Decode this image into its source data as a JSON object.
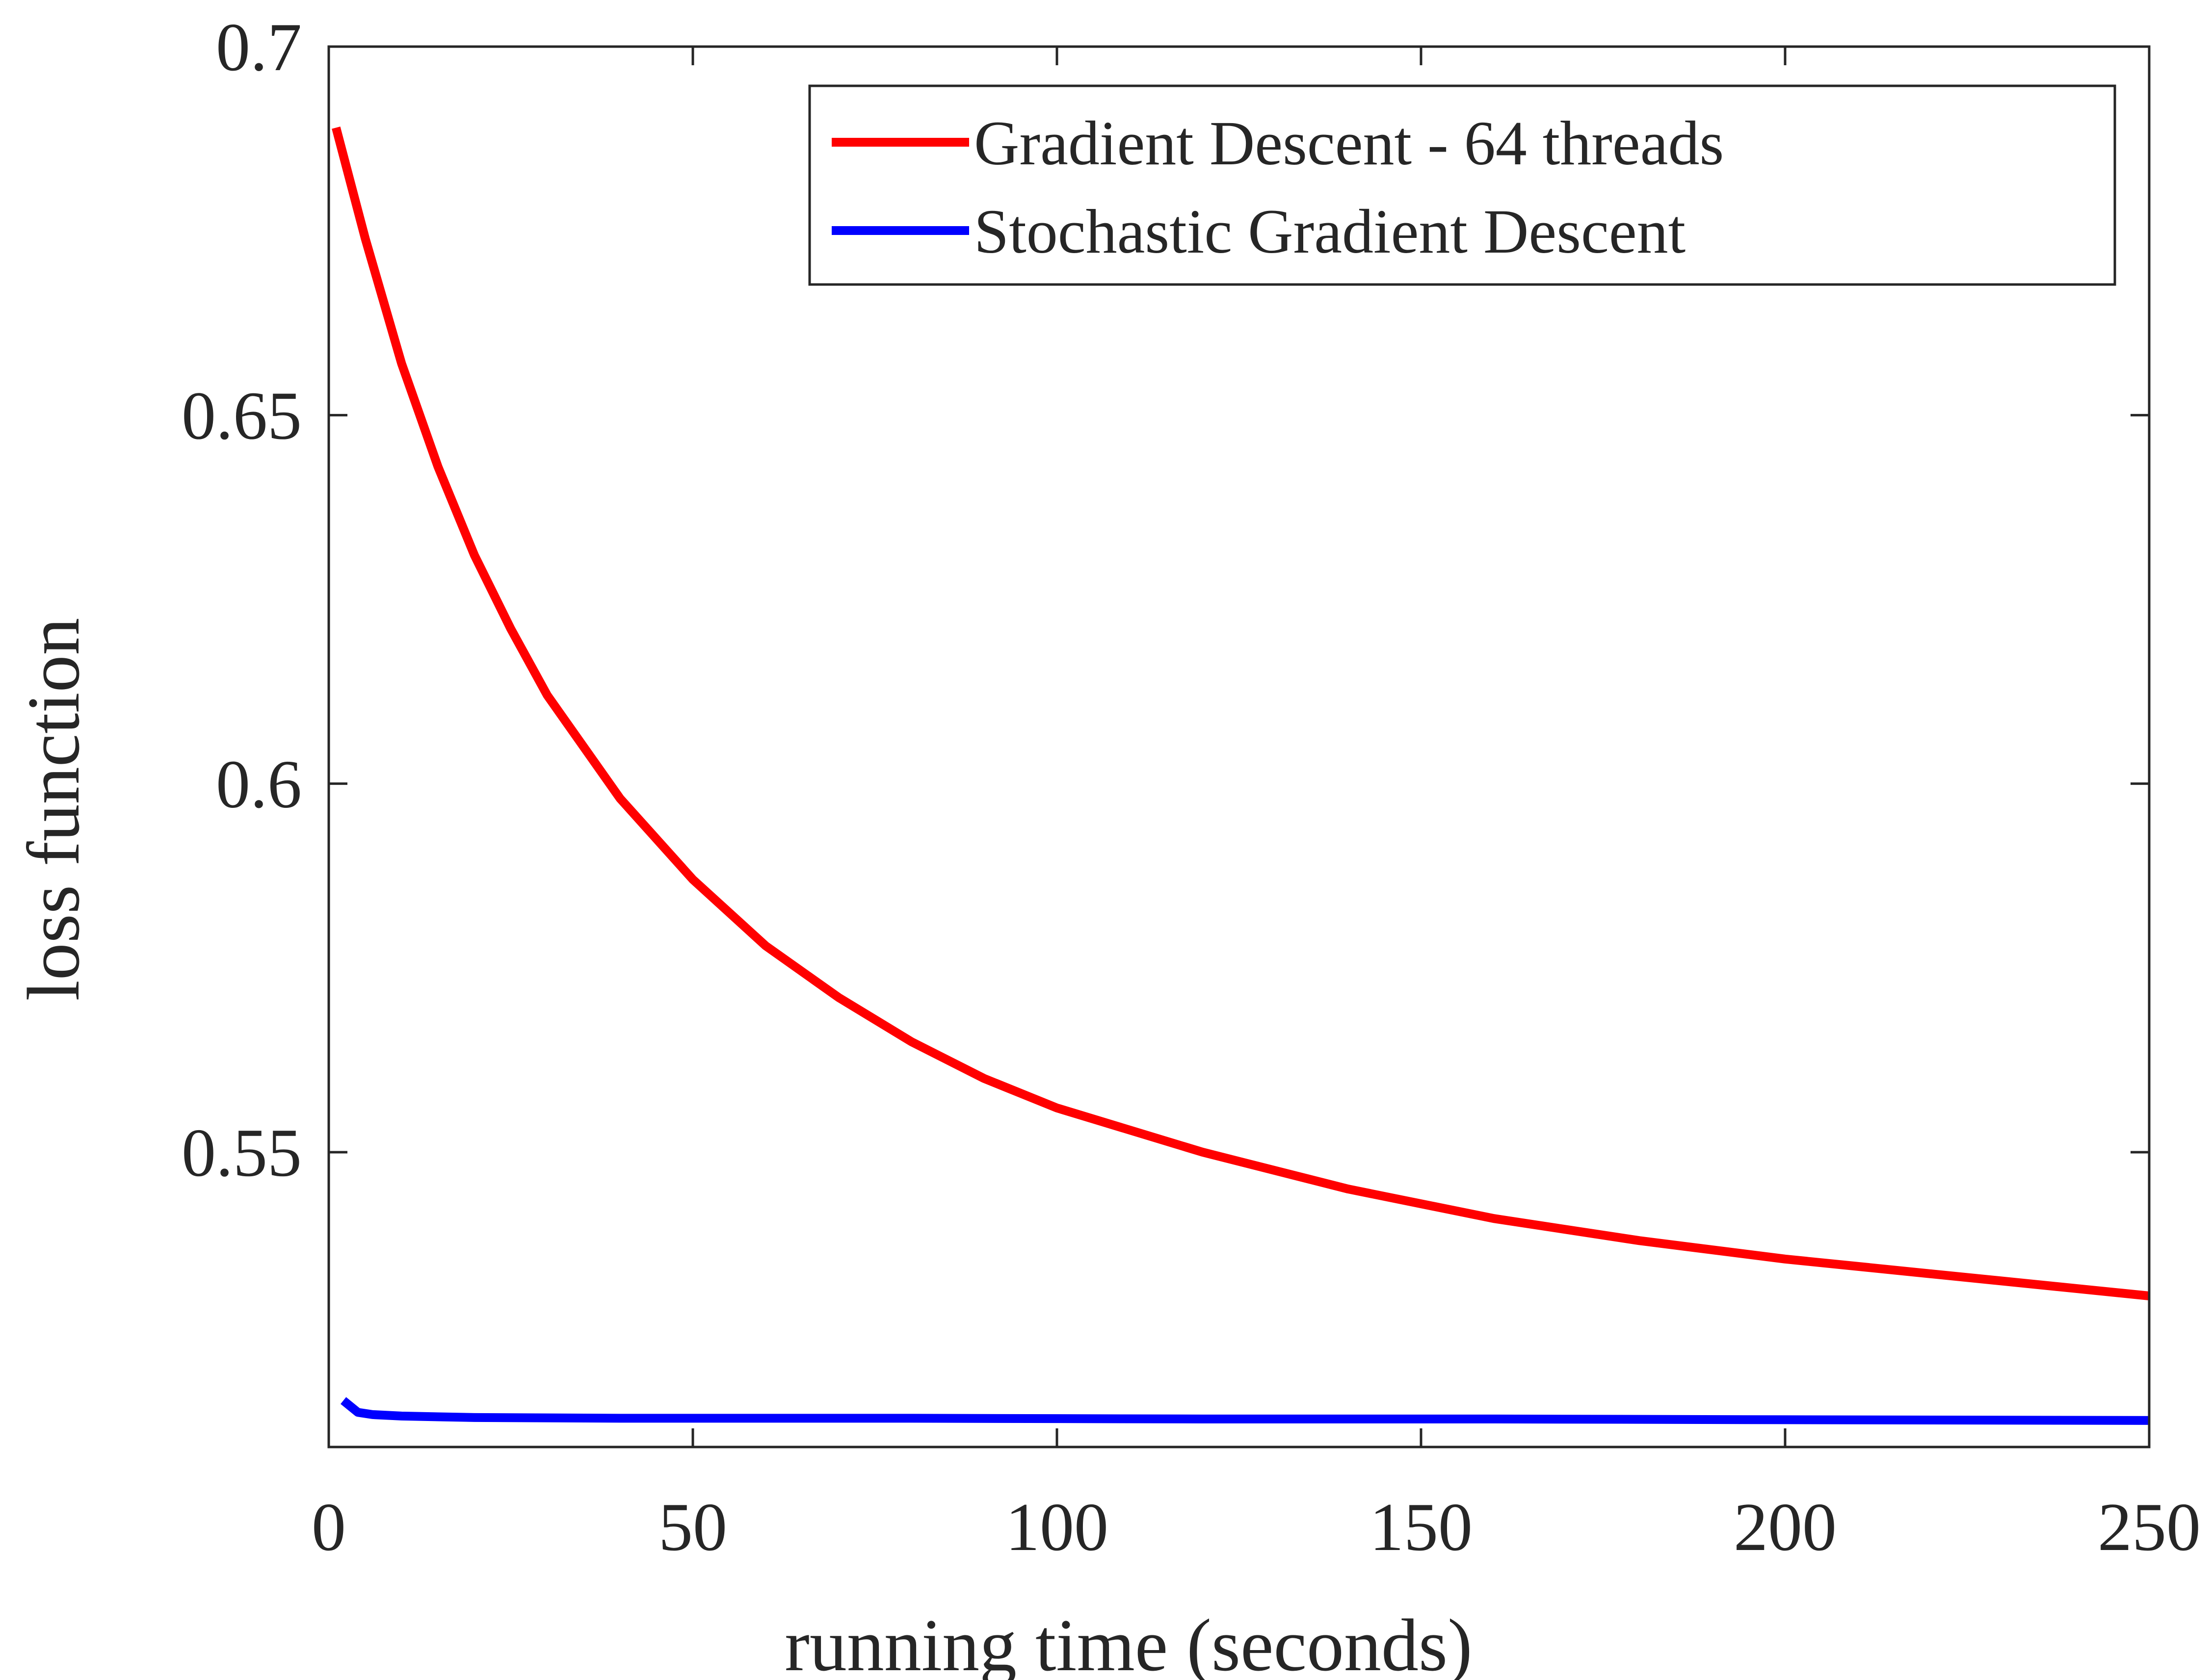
{
  "chart_data": {
    "type": "line",
    "title": "",
    "xlabel": "running time (seconds)",
    "ylabel": "loss function",
    "xlim": [
      0,
      250
    ],
    "ylim": [
      0.51,
      0.7
    ],
    "x_ticks": [
      0,
      50,
      100,
      150,
      200,
      250
    ],
    "x_tick_labels": [
      "0",
      "50",
      "100",
      "150",
      "200",
      "250"
    ],
    "y_ticks": [
      0.55,
      0.6,
      0.65,
      0.7
    ],
    "y_tick_labels": [
      "0.55",
      "0.6",
      "0.65",
      "0.7"
    ],
    "grid": false,
    "legend_position": "top-right",
    "series": [
      {
        "name": "Gradient Descent - 64 threads",
        "color": "#ff0000",
        "x": [
          1,
          5,
          10,
          15,
          20,
          25,
          30,
          40,
          50,
          60,
          70,
          80,
          90,
          100,
          120,
          140,
          160,
          180,
          200,
          220,
          240,
          250
        ],
        "y": [
          0.689,
          0.674,
          0.657,
          0.643,
          0.631,
          0.621,
          0.612,
          0.598,
          0.587,
          0.578,
          0.571,
          0.565,
          0.56,
          0.556,
          0.55,
          0.545,
          0.541,
          0.538,
          0.5355,
          0.5335,
          0.5315,
          0.5305
        ]
      },
      {
        "name": "Stochastic Gradient Descent",
        "color": "#0000ff",
        "x": [
          2,
          4,
          6,
          10,
          20,
          40,
          80,
          120,
          160,
          200,
          250
        ],
        "y": [
          0.5163,
          0.5147,
          0.5144,
          0.5142,
          0.514,
          0.5139,
          0.5139,
          0.5138,
          0.5138,
          0.5137,
          0.5136
        ]
      }
    ]
  }
}
